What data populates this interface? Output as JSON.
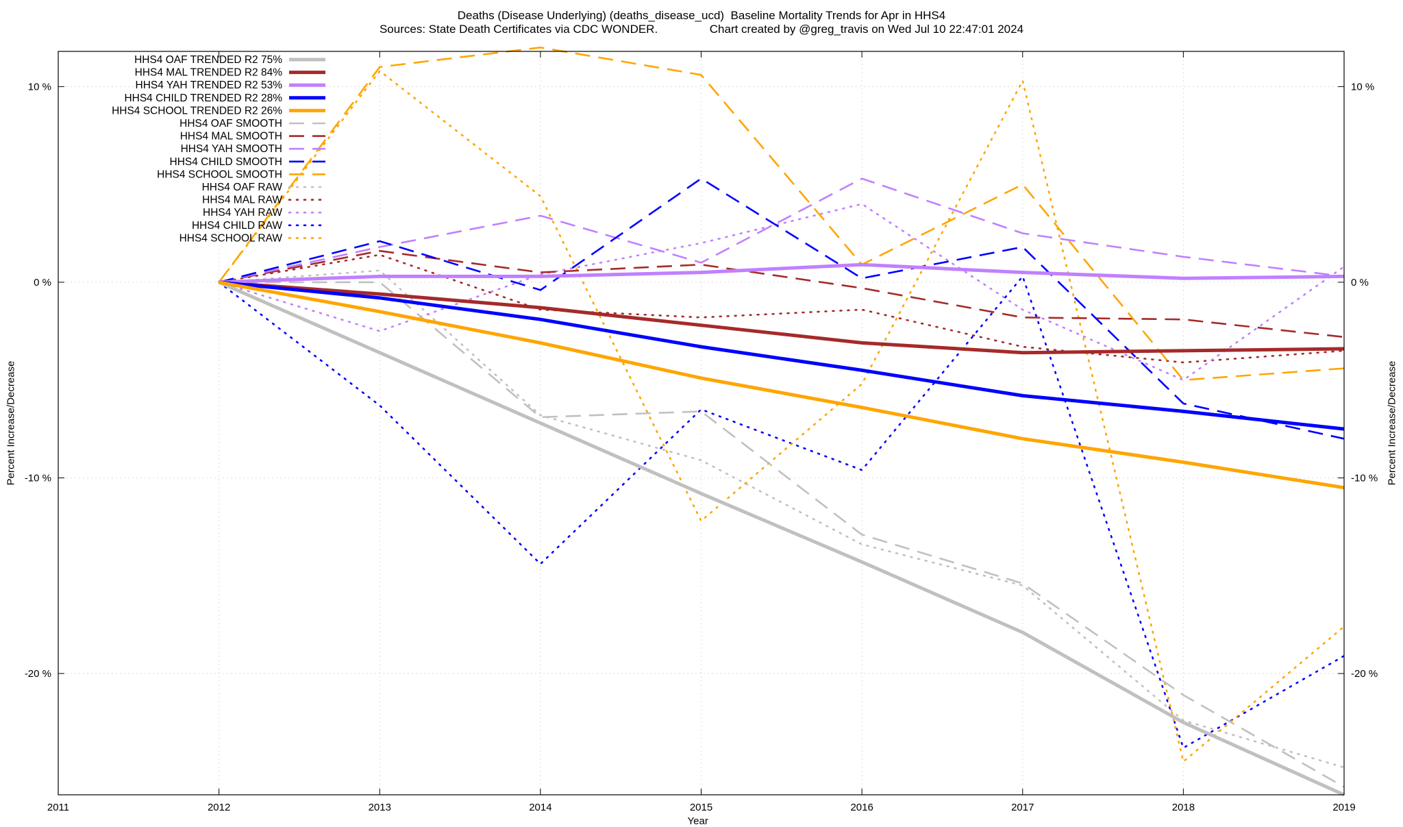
{
  "header": {
    "title_line1": "Deaths (Disease Underlying) (deaths_disease_ucd)  Baseline Mortality Trends for Apr in HHS4",
    "title_line2": "Sources: State Death Certificates via CDC WONDER.                Chart created by @greg_travis on Wed Jul 10 22:47:01 2024"
  },
  "chart_data": {
    "type": "line",
    "title": "Deaths (Disease Underlying) (deaths_disease_ucd)  Baseline Mortality Trends for Apr in HHS4",
    "subtitle": "Sources: State Death Certificates via CDC WONDER.                Chart created by @greg_travis on Wed Jul 10 22:47:01 2024",
    "xlabel": "Year",
    "ylabel": "Percent Increase/Decrease",
    "xlim": [
      2011,
      2019
    ],
    "ylim": [
      -26.2,
      11.8
    ],
    "x_ticks": [
      2011,
      2012,
      2013,
      2014,
      2015,
      2016,
      2017,
      2018,
      2019
    ],
    "y_ticks": [
      {
        "value": 10,
        "label": "10 %"
      },
      {
        "value": 0,
        "label": "0 %"
      },
      {
        "value": -10,
        "label": "-10 %"
      },
      {
        "value": -20,
        "label": "-20 %"
      }
    ],
    "grid": true,
    "legend_position": "top-left",
    "x": [
      2012,
      2013,
      2014,
      2015,
      2016,
      2017,
      2018,
      2019
    ],
    "series": [
      {
        "name": "HHS4 OAF TRENDED R2  75%",
        "color": "#c0c0c0",
        "style": "trend",
        "values": [
          0,
          -3.6,
          -7.2,
          -10.8,
          -14.3,
          -17.9,
          -22.5,
          -26.2
        ]
      },
      {
        "name": "HHS4 MAL TRENDED R2  84%",
        "color": "#a52a2a",
        "style": "trend",
        "values": [
          0,
          -0.6,
          -1.3,
          -2.2,
          -3.1,
          -3.6,
          -3.5,
          -3.4
        ]
      },
      {
        "name": "HHS4 YAH TRENDED R2  53%",
        "color": "#c080ff",
        "style": "trend",
        "values": [
          0,
          0.3,
          0.3,
          0.5,
          0.9,
          0.5,
          0.2,
          0.3
        ]
      },
      {
        "name": "HHS4 CHILD TRENDED R2  28%",
        "color": "#0000ff",
        "style": "trend",
        "values": [
          0,
          -0.8,
          -1.9,
          -3.3,
          -4.5,
          -5.8,
          -6.6,
          -7.5
        ]
      },
      {
        "name": "HHS4 SCHOOL TRENDED R2  26%",
        "color": "#ffa500",
        "style": "trend",
        "values": [
          0,
          -1.5,
          -3.1,
          -4.9,
          -6.4,
          -8.0,
          -9.2,
          -10.5
        ]
      },
      {
        "name": "HHS4 OAF SMOOTH",
        "color": "#c0c0c0",
        "style": "smooth",
        "values": [
          0,
          0.0,
          -6.9,
          -6.6,
          -12.9,
          -15.4,
          -21.1,
          -25.8
        ]
      },
      {
        "name": "HHS4 MAL SMOOTH",
        "color": "#a52a2a",
        "style": "smooth",
        "values": [
          0,
          1.6,
          0.5,
          0.9,
          -0.3,
          -1.8,
          -1.9,
          -2.8
        ]
      },
      {
        "name": "HHS4 YAH SMOOTH",
        "color": "#c080ff",
        "style": "smooth",
        "values": [
          0,
          1.8,
          3.4,
          1.0,
          5.3,
          2.5,
          1.3,
          0.3
        ]
      },
      {
        "name": "HHS4 CHILD SMOOTH",
        "color": "#0000ff",
        "style": "smooth",
        "values": [
          0,
          2.1,
          -0.4,
          5.3,
          0.2,
          1.8,
          -6.2,
          -8.0
        ]
      },
      {
        "name": "HHS4 SCHOOL SMOOTH",
        "color": "#ffa500",
        "style": "smooth",
        "values": [
          0,
          11.0,
          12.0,
          10.6,
          0.9,
          5.0,
          -5.0,
          -4.4
        ]
      },
      {
        "name": "HHS4 OAF RAW",
        "color": "#c0c0c0",
        "style": "raw",
        "values": [
          0,
          0.6,
          -6.8,
          -9.1,
          -13.4,
          -15.5,
          -22.4,
          -24.8
        ]
      },
      {
        "name": "HHS4 MAL RAW",
        "color": "#a52a2a",
        "style": "raw",
        "values": [
          0,
          1.4,
          -1.4,
          -1.8,
          -1.4,
          -3.3,
          -4.1,
          -3.5
        ]
      },
      {
        "name": "HHS4 YAH RAW",
        "color": "#c080ff",
        "style": "raw",
        "values": [
          0,
          -2.5,
          0.4,
          2.0,
          4.0,
          -1.4,
          -5.0,
          0.8
        ]
      },
      {
        "name": "HHS4 CHILD RAW",
        "color": "#0000ff",
        "style": "raw",
        "values": [
          0,
          -6.3,
          -14.4,
          -6.5,
          -9.6,
          0.3,
          -23.8,
          -19.1
        ]
      },
      {
        "name": "HHS4 SCHOOL RAW",
        "color": "#ffa500",
        "style": "raw",
        "values": [
          0,
          10.8,
          4.4,
          -12.2,
          -5.2,
          10.3,
          -24.5,
          -17.6
        ]
      }
    ]
  }
}
